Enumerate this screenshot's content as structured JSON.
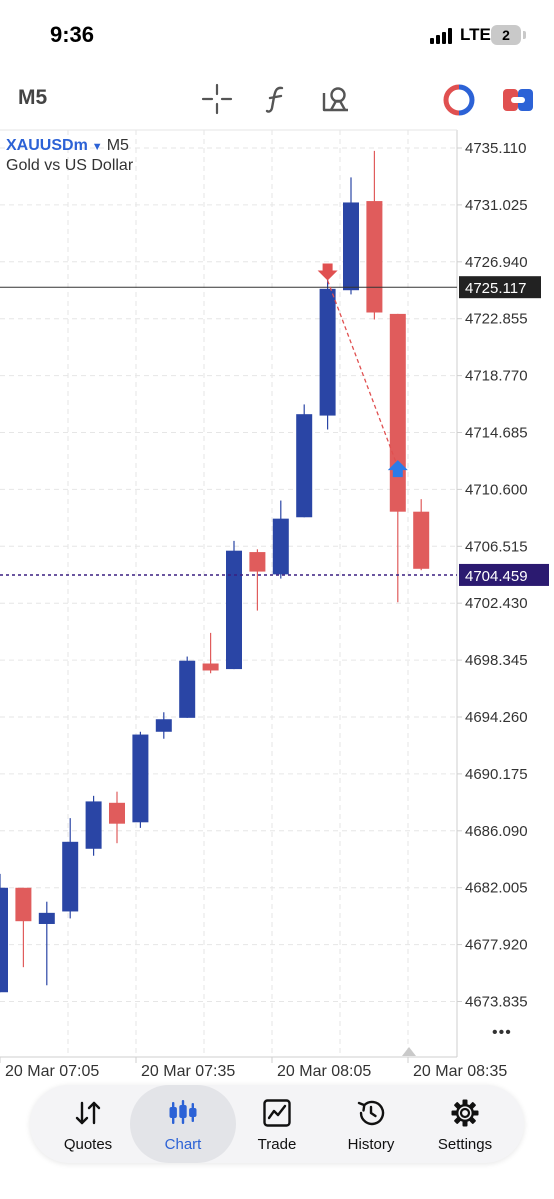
{
  "status_bar": {
    "time": "9:36",
    "network": "LTE",
    "battery": "2"
  },
  "toolbar": {
    "timeframe": "M5",
    "tools": [
      "crosshair-icon",
      "indicators-icon",
      "objects-icon"
    ],
    "right_icons": [
      "one-click-trading-icon",
      "trade-toggle-icon"
    ]
  },
  "chart": {
    "symbol": "XAUUSDm",
    "timeframe": "M5",
    "description": "Gold vs US Dollar",
    "price_labels": [
      "4735.110",
      "4731.025",
      "4726.940",
      "4722.855",
      "4718.770",
      "4714.685",
      "4710.600",
      "4706.515",
      "4702.430",
      "4698.345",
      "4694.260",
      "4690.175",
      "4686.090",
      "4682.005",
      "4677.920",
      "4673.835"
    ],
    "bid_price": "4725.117",
    "line_price": "4704.459",
    "time_labels": [
      "20 Mar 07:05",
      "20 Mar 07:35",
      "20 Mar 08:05",
      "20 Mar 08:35"
    ],
    "more_label": "•••"
  },
  "chart_data": {
    "type": "candlestick",
    "symbol": "XAUUSDm",
    "timeframe": "M5",
    "ylim": [
      4672.0,
      4737.0
    ],
    "candles": [
      {
        "o": 4674.5,
        "h": 4683.0,
        "l": 4674.5,
        "c": 4682.0
      },
      {
        "o": 4682.0,
        "h": 4682.0,
        "l": 4676.3,
        "c": 4679.6
      },
      {
        "o": 4679.4,
        "h": 4681.0,
        "l": 4675.0,
        "c": 4680.2
      },
      {
        "o": 4680.3,
        "h": 4687.0,
        "l": 4679.8,
        "c": 4685.3
      },
      {
        "o": 4684.8,
        "h": 4688.6,
        "l": 4684.3,
        "c": 4688.2
      },
      {
        "o": 4688.1,
        "h": 4688.9,
        "l": 4685.2,
        "c": 4686.6
      },
      {
        "o": 4686.7,
        "h": 4693.2,
        "l": 4686.3,
        "c": 4693.0
      },
      {
        "o": 4693.2,
        "h": 4694.6,
        "l": 4692.7,
        "c": 4694.1
      },
      {
        "o": 4694.2,
        "h": 4698.6,
        "l": 4694.2,
        "c": 4698.3
      },
      {
        "o": 4698.1,
        "h": 4700.3,
        "l": 4697.4,
        "c": 4697.6
      },
      {
        "o": 4697.7,
        "h": 4706.9,
        "l": 4697.7,
        "c": 4706.2
      },
      {
        "o": 4706.1,
        "h": 4706.3,
        "l": 4701.9,
        "c": 4704.7
      },
      {
        "o": 4704.5,
        "h": 4709.8,
        "l": 4704.2,
        "c": 4708.5
      },
      {
        "o": 4708.6,
        "h": 4716.7,
        "l": 4708.6,
        "c": 4716.0
      },
      {
        "o": 4715.9,
        "h": 4726.0,
        "l": 4714.9,
        "c": 4725.0
      },
      {
        "o": 4724.9,
        "h": 4733.0,
        "l": 4724.6,
        "c": 4731.2
      },
      {
        "o": 4731.3,
        "h": 4734.9,
        "l": 4722.8,
        "c": 4723.3
      },
      {
        "o": 4723.2,
        "h": 4723.2,
        "l": 4702.5,
        "c": 4709.0
      },
      {
        "o": 4709.0,
        "h": 4709.9,
        "l": 4704.8,
        "c": 4704.9
      }
    ],
    "markers": [
      {
        "type": "sell",
        "candle": 14,
        "price": 4725.6
      },
      {
        "type": "buy",
        "candle": 17,
        "price": 4712.2
      }
    ],
    "bid_line": 4725.117,
    "horizontal_line": 4704.459,
    "colors": {
      "bull": "#2a45a5",
      "bear": "#e05c5c",
      "grid": "#e6e6e6",
      "accent": "#2c62d6"
    }
  },
  "bottom_nav": {
    "items": [
      {
        "key": "quotes",
        "label": "Quotes",
        "icon": "quotes-icon",
        "active": false
      },
      {
        "key": "chart",
        "label": "Chart",
        "icon": "chart-icon",
        "active": true
      },
      {
        "key": "trade",
        "label": "Trade",
        "icon": "trade-icon",
        "active": false
      },
      {
        "key": "history",
        "label": "History",
        "icon": "history-icon",
        "active": false
      },
      {
        "key": "settings",
        "label": "Settings",
        "icon": "settings-icon",
        "active": false
      }
    ]
  }
}
